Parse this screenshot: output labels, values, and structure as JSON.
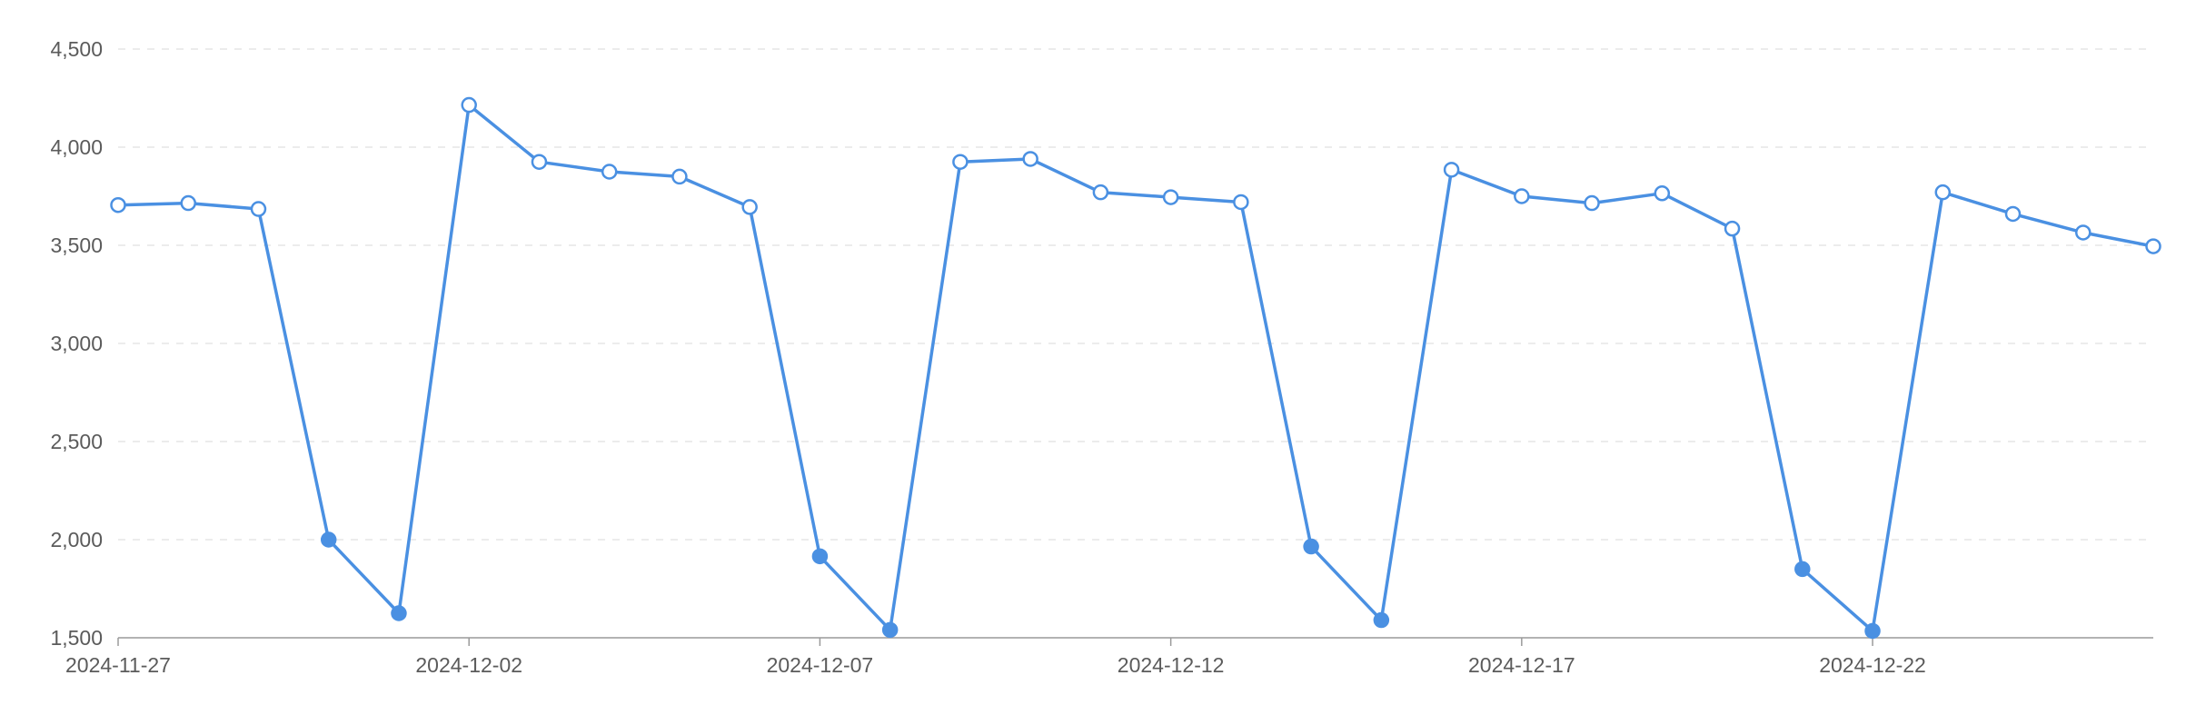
{
  "chart_data": {
    "type": "line",
    "title": "",
    "xlabel": "",
    "ylabel": "",
    "x": [
      "2024-11-27",
      "2024-11-28",
      "2024-11-29",
      "2024-11-30",
      "2024-12-01",
      "2024-12-02",
      "2024-12-03",
      "2024-12-04",
      "2024-12-05",
      "2024-12-06",
      "2024-12-07",
      "2024-12-08",
      "2024-12-09",
      "2024-12-10",
      "2024-12-11",
      "2024-12-12",
      "2024-12-13",
      "2024-12-14",
      "2024-12-15",
      "2024-12-16",
      "2024-12-17",
      "2024-12-18",
      "2024-12-19",
      "2024-12-20",
      "2024-12-21",
      "2024-12-22",
      "2024-12-23",
      "2024-12-24",
      "2024-12-25",
      "2024-12-26"
    ],
    "series": [
      {
        "values": [
          3705,
          3715,
          3685,
          2000,
          1625,
          4215,
          3925,
          3875,
          3850,
          3695,
          1915,
          1540,
          3925,
          3940,
          3770,
          3745,
          3720,
          1965,
          1590,
          3885,
          3750,
          3715,
          3765,
          3585,
          1850,
          1535,
          3770,
          3660,
          3565,
          3495
        ]
      }
    ],
    "weekend_dates": [
      "2024-11-30",
      "2024-12-01",
      "2024-12-07",
      "2024-12-08",
      "2024-12-14",
      "2024-12-15",
      "2024-12-21",
      "2024-12-22"
    ],
    "x_ticks": [
      "2024-11-27",
      "2024-12-02",
      "2024-12-07",
      "2024-12-12",
      "2024-12-17",
      "2024-12-22"
    ],
    "ylim": [
      1500,
      4500
    ],
    "y_ticks": [
      1500,
      2000,
      2500,
      3000,
      3500,
      4000,
      4500
    ],
    "y_tick_labels": [
      "1,500",
      "2,000",
      "2,500",
      "3,000",
      "3,500",
      "4,000",
      "4,500"
    ],
    "grid": true,
    "colors": {
      "line": "#4a90e2",
      "marker_fill": "#ffffff",
      "weekend_marker_fill": "#4a90e2"
    }
  }
}
